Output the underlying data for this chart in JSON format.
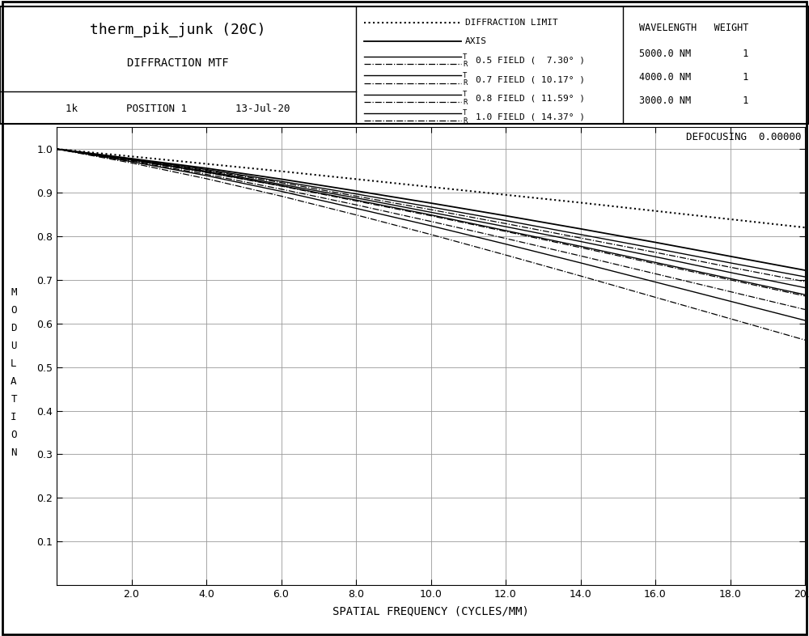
{
  "title": "therm_pik_junk (20C)",
  "subtitle": "DIFFRACTION MTF",
  "position_line": "1k        POSITION 1        13-Jul-20",
  "defocusing": "DEFOCUSING  0.00000",
  "xlabel": "SPATIAL FREQUENCY (CYCLES/MM)",
  "ylabel": "MODULATION",
  "xlim": [
    0.0,
    20.0
  ],
  "ylim": [
    0.0,
    1.05
  ],
  "xticks": [
    2.0,
    4.0,
    6.0,
    8.0,
    10.0,
    12.0,
    14.0,
    16.0,
    18.0,
    20.0
  ],
  "yticks": [
    0.1,
    0.2,
    0.3,
    0.4,
    0.5,
    0.6,
    0.7,
    0.8,
    0.9,
    1.0
  ],
  "x": [
    0.0,
    2.0,
    4.0,
    6.0,
    8.0,
    10.0,
    12.0,
    14.0,
    16.0,
    18.0,
    20.0
  ],
  "diffraction_limit": [
    1.0,
    0.983,
    0.966,
    0.949,
    0.931,
    0.913,
    0.895,
    0.877,
    0.858,
    0.839,
    0.82
  ],
  "axis_T": [
    1.0,
    0.978,
    0.956,
    0.931,
    0.904,
    0.876,
    0.847,
    0.817,
    0.786,
    0.754,
    0.722
  ],
  "field05_T": [
    1.0,
    0.977,
    0.953,
    0.926,
    0.897,
    0.867,
    0.836,
    0.804,
    0.772,
    0.739,
    0.707
  ],
  "field05_R": [
    1.0,
    0.976,
    0.951,
    0.923,
    0.892,
    0.861,
    0.829,
    0.796,
    0.763,
    0.729,
    0.696
  ],
  "field07_T": [
    1.0,
    0.975,
    0.949,
    0.919,
    0.888,
    0.855,
    0.822,
    0.788,
    0.753,
    0.717,
    0.682
  ],
  "field07_R": [
    1.0,
    0.974,
    0.946,
    0.915,
    0.881,
    0.847,
    0.811,
    0.774,
    0.737,
    0.7,
    0.663
  ],
  "field08_T": [
    1.0,
    0.975,
    0.947,
    0.916,
    0.883,
    0.849,
    0.813,
    0.777,
    0.74,
    0.703,
    0.666
  ],
  "field08_R": [
    1.0,
    0.972,
    0.942,
    0.908,
    0.872,
    0.834,
    0.795,
    0.755,
    0.714,
    0.673,
    0.632
  ],
  "field10_T": [
    1.0,
    0.971,
    0.939,
    0.903,
    0.864,
    0.824,
    0.782,
    0.739,
    0.695,
    0.651,
    0.607
  ],
  "field10_R": [
    1.0,
    0.968,
    0.932,
    0.892,
    0.849,
    0.804,
    0.757,
    0.709,
    0.66,
    0.611,
    0.562
  ],
  "bg_color": "#ffffff"
}
